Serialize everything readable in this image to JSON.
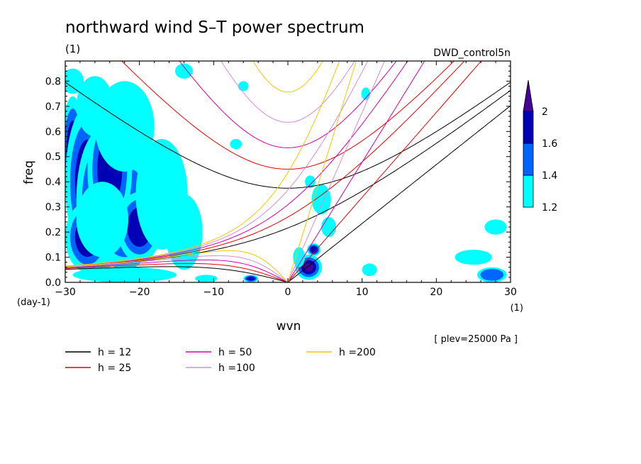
{
  "chart_data": {
    "type": "heatmap",
    "title": "northward wind S–T power spectrum",
    "subtitle_left": "(1)",
    "subtitle_right": "DWD_control5n",
    "xlabel": "wvn",
    "ylabel": "freq",
    "x_unit": "(1)",
    "y_unit": "(day-1)",
    "xlim": [
      -30,
      30
    ],
    "ylim": [
      0,
      0.88
    ],
    "x_ticks": [
      -30,
      -20,
      -10,
      0,
      10,
      20,
      30
    ],
    "x_tick_labels": [
      "−30",
      "−20",
      "−10",
      "0",
      "10",
      "20",
      "30"
    ],
    "y_ticks": [
      0,
      0.1,
      0.2,
      0.3,
      0.4,
      0.5,
      0.6,
      0.7,
      0.8
    ],
    "y_tick_labels": [
      "0.0",
      "0.1",
      "0.2",
      "0.3",
      "0.4",
      "0.5",
      "0.6",
      "0.7",
      "0.8"
    ],
    "annotation": "[ plev=25000 Pa ]",
    "colorbar": {
      "levels": [
        1.2,
        1.4,
        1.6,
        2
      ],
      "labels": [
        "1.2",
        "1.4",
        "1.6",
        "2"
      ],
      "colors": [
        "#00ffff",
        "#0064ff",
        "#0000b4",
        "#460096"
      ],
      "extend": "max"
    },
    "dispersion_curves": [
      {
        "h": 12,
        "legend": "h = 12",
        "color": "#000000"
      },
      {
        "h": 25,
        "legend": "h = 25",
        "color": "#e60000"
      },
      {
        "h": 50,
        "legend": "h = 50",
        "color": "#d200aa"
      },
      {
        "h": 100,
        "legend": "h =100",
        "color": "#d28cdc"
      },
      {
        "h": 200,
        "legend": "h =200",
        "color": "#f0c800"
      }
    ],
    "power_blobs": [
      {
        "x": -29,
        "y": 0.52,
        "rx": 1.5,
        "ry": 0.22,
        "level": 3
      },
      {
        "x": -27,
        "y": 0.4,
        "rx": 3.0,
        "ry": 0.3,
        "level": 2
      },
      {
        "x": -25,
        "y": 0.33,
        "rx": 3.5,
        "ry": 0.28,
        "level": 1
      },
      {
        "x": -22,
        "y": 0.28,
        "rx": 4.5,
        "ry": 0.23,
        "level": 1
      },
      {
        "x": -24,
        "y": 0.45,
        "rx": 3.0,
        "ry": 0.25,
        "level": 2
      },
      {
        "x": -20,
        "y": 0.22,
        "rx": 3.0,
        "ry": 0.14,
        "level": 2
      },
      {
        "x": -27,
        "y": 0.18,
        "rx": 3.0,
        "ry": 0.14,
        "level": 2
      },
      {
        "x": -25,
        "y": 0.25,
        "rx": 3.5,
        "ry": 0.15,
        "level": 0
      },
      {
        "x": -17,
        "y": 0.35,
        "rx": 3.5,
        "ry": 0.22,
        "level": 0
      },
      {
        "x": -14,
        "y": 0.2,
        "rx": 2.5,
        "ry": 0.15,
        "level": 0
      },
      {
        "x": -22,
        "y": 0.62,
        "rx": 4.0,
        "ry": 0.18,
        "level": 0
      },
      {
        "x": -26,
        "y": 0.7,
        "rx": 2.5,
        "ry": 0.12,
        "level": 0
      },
      {
        "x": -29,
        "y": 0.8,
        "rx": 1.5,
        "ry": 0.05,
        "level": 0
      },
      {
        "x": -22,
        "y": 0.03,
        "rx": 7.0,
        "ry": 0.03,
        "level": 0
      },
      {
        "x": -5,
        "y": 0.015,
        "rx": 1.0,
        "ry": 0.015,
        "level": 2
      },
      {
        "x": -11,
        "y": 0.015,
        "rx": 1.5,
        "ry": 0.015,
        "level": 0
      },
      {
        "x": 2.8,
        "y": 0.06,
        "rx": 1.8,
        "ry": 0.05,
        "level": 3
      },
      {
        "x": 3.5,
        "y": 0.13,
        "rx": 0.9,
        "ry": 0.025,
        "level": 2
      },
      {
        "x": 1.5,
        "y": 0.1,
        "rx": 0.8,
        "ry": 0.04,
        "level": 0
      },
      {
        "x": 5.5,
        "y": 0.22,
        "rx": 1.0,
        "ry": 0.04,
        "level": 0
      },
      {
        "x": 4.5,
        "y": 0.33,
        "rx": 1.3,
        "ry": 0.06,
        "level": 0
      },
      {
        "x": 3.0,
        "y": 0.4,
        "rx": 0.7,
        "ry": 0.025,
        "level": 0
      },
      {
        "x": 27.5,
        "y": 0.03,
        "rx": 2.0,
        "ry": 0.03,
        "level": 1
      },
      {
        "x": 25,
        "y": 0.1,
        "rx": 2.5,
        "ry": 0.03,
        "level": 0
      },
      {
        "x": 28,
        "y": 0.22,
        "rx": 1.5,
        "ry": 0.03,
        "level": 0
      },
      {
        "x": 11,
        "y": 0.05,
        "rx": 1.0,
        "ry": 0.025,
        "level": 0
      },
      {
        "x": 10.5,
        "y": 0.75,
        "rx": 0.6,
        "ry": 0.025,
        "level": 0
      },
      {
        "x": -7,
        "y": 0.55,
        "rx": 0.8,
        "ry": 0.02,
        "level": 0
      },
      {
        "x": -6,
        "y": 0.78,
        "rx": 0.7,
        "ry": 0.02,
        "level": 0
      },
      {
        "x": -14,
        "y": 0.84,
        "rx": 1.2,
        "ry": 0.03,
        "level": 0
      }
    ]
  }
}
